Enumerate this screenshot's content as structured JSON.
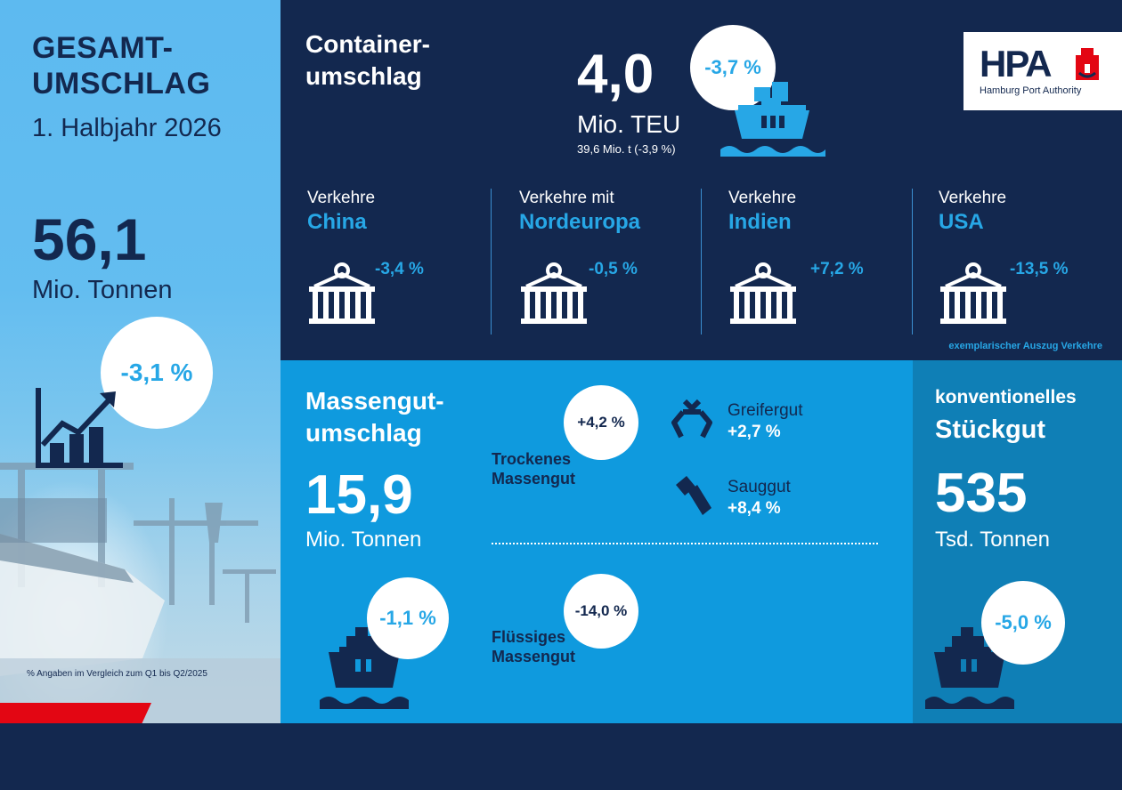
{
  "total": {
    "title_line1": "GESAMT-",
    "title_line2": "UMSCHLAG",
    "period": "1. Halbjahr 2026",
    "value": "56,1",
    "unit": "Mio. Tonnen",
    "change": "-3,1 %",
    "footnote": "% Angaben im Vergleich zum Q1 bis Q2/2025"
  },
  "container": {
    "title_line1": "Container-",
    "title_line2": "umschlag",
    "value": "4,0",
    "unit": "Mio. TEU",
    "sub": "39,6 Mio. t (-3,9 %)",
    "change": "-3,7 %"
  },
  "logo": {
    "mark": "HPA",
    "name": "Hamburg Port Authority"
  },
  "traffics": [
    {
      "label": "Verkehre",
      "region": "China",
      "change": "-3,4 %"
    },
    {
      "label": "Verkehre mit",
      "region": "Nordeuropa",
      "change": "-0,5 %"
    },
    {
      "label": "Verkehre",
      "region": "Indien",
      "change": "+7,2 %"
    },
    {
      "label": "Verkehre",
      "region": "USA",
      "change": "-13,5 %"
    }
  ],
  "traffic_note": "exemplarischer Auszug Verkehre",
  "bulk": {
    "title_line1": "Massengut-",
    "title_line2": "umschlag",
    "value": "15,9",
    "unit": "Mio. Tonnen",
    "change": "-1,1 %",
    "dry": {
      "change": "+4,2 %",
      "label_line1": "Trockenes",
      "label_line2": "Massengut"
    },
    "grab": {
      "label": "Greifergut",
      "change": "+2,7 %"
    },
    "suction": {
      "label": "Sauggut",
      "change": "+8,4 %"
    },
    "liquid": {
      "change": "-14,0 %",
      "label_line1": "Flüssiges",
      "label_line2": "Massengut"
    }
  },
  "conventional": {
    "title_line1": "konventionelles",
    "title_line2": "Stückgut",
    "value": "535",
    "unit": "Tsd. Tonnen",
    "change": "-5,0 %"
  },
  "colors": {
    "navy": "#13284f",
    "cyan": "#27a7e6",
    "bulk_blue": "#0f9ade",
    "conv_blue": "#0f7fb6",
    "red": "#e30613"
  }
}
